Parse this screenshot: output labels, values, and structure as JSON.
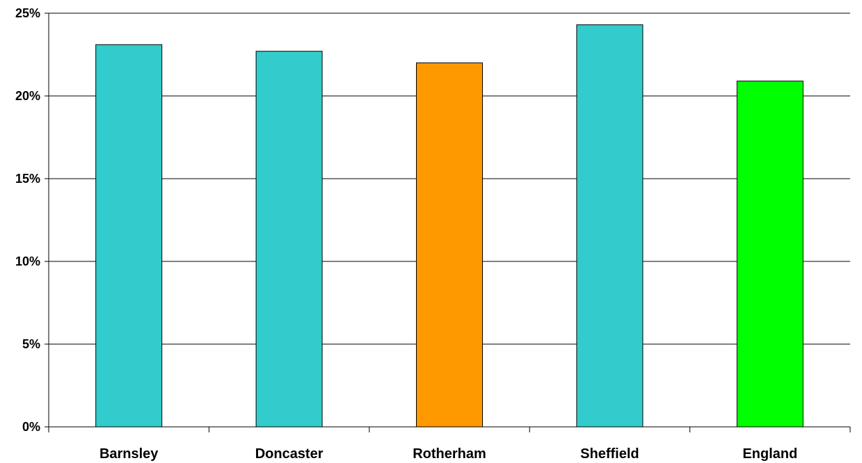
{
  "chart_data": {
    "type": "bar",
    "title": "",
    "xlabel": "",
    "ylabel": "",
    "categories": [
      "Barnsley",
      "Doncaster",
      "Rotherham",
      "Sheffield",
      "England"
    ],
    "values": [
      23.1,
      22.7,
      22.0,
      24.3,
      20.9
    ],
    "bar_colors": [
      "#33CCCC",
      "#33CCCC",
      "#FF9900",
      "#33CCCC",
      "#00FF00"
    ],
    "ylim": [
      0,
      25
    ],
    "yticks": [
      0,
      5,
      10,
      15,
      20,
      25
    ],
    "ytick_labels": [
      "0%",
      "5%",
      "10%",
      "15%",
      "20%",
      "25%"
    ],
    "grid": true,
    "legend": "none"
  }
}
